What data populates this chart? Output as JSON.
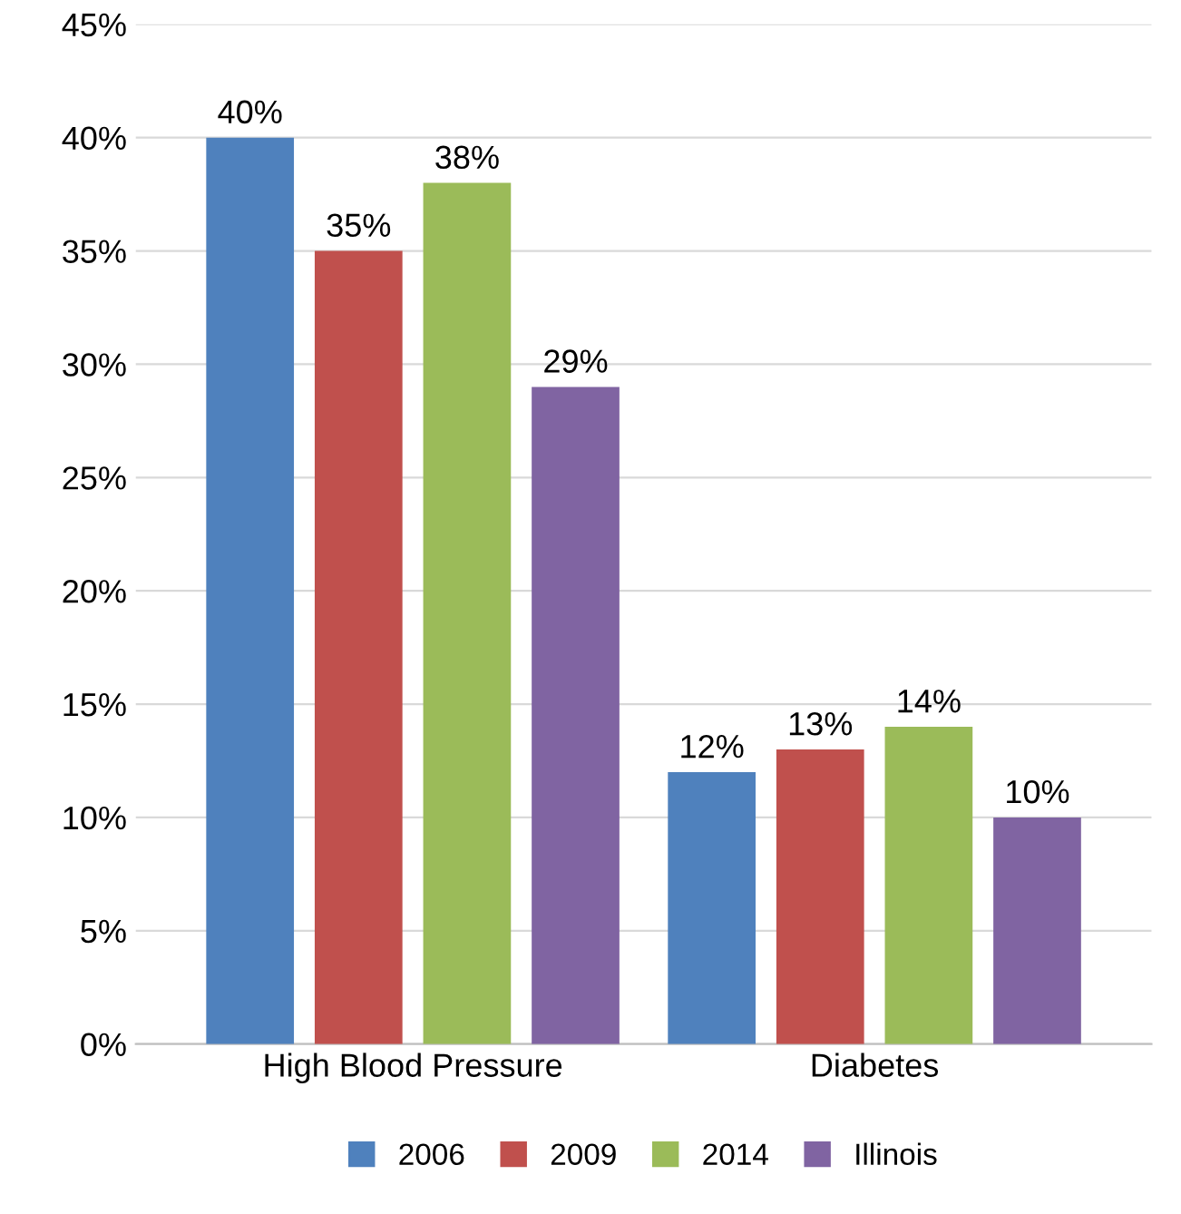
{
  "chart_data": {
    "type": "bar",
    "categories": [
      "High Blood Pressure",
      "Diabetes"
    ],
    "series": [
      {
        "name": "2006",
        "color": "#4f81bd",
        "values": [
          40,
          12
        ]
      },
      {
        "name": "2009",
        "color": "#c0504d",
        "values": [
          35,
          13
        ]
      },
      {
        "name": "2014",
        "color": "#9bbb59",
        "values": [
          38,
          14
        ]
      },
      {
        "name": "Illinois",
        "color": "#8064a2",
        "values": [
          29,
          10
        ]
      }
    ],
    "ylim": [
      0,
      45
    ],
    "yticks": [
      {
        "value": 0,
        "label": "0%"
      },
      {
        "value": 5,
        "label": "5%"
      },
      {
        "value": 10,
        "label": "10%"
      },
      {
        "value": 15,
        "label": "15%"
      },
      {
        "value": 20,
        "label": "20%"
      },
      {
        "value": 25,
        "label": "25%"
      },
      {
        "value": 30,
        "label": "30%"
      },
      {
        "value": 35,
        "label": "35%"
      },
      {
        "value": 40,
        "label": "40%"
      },
      {
        "value": 45,
        "label": "45%"
      }
    ],
    "value_labels": [
      [
        "40%",
        "12%"
      ],
      [
        "35%",
        "13%"
      ],
      [
        "38%",
        "14%"
      ],
      [
        "29%",
        "10%"
      ]
    ],
    "grid": "y",
    "legend": "bottom"
  }
}
